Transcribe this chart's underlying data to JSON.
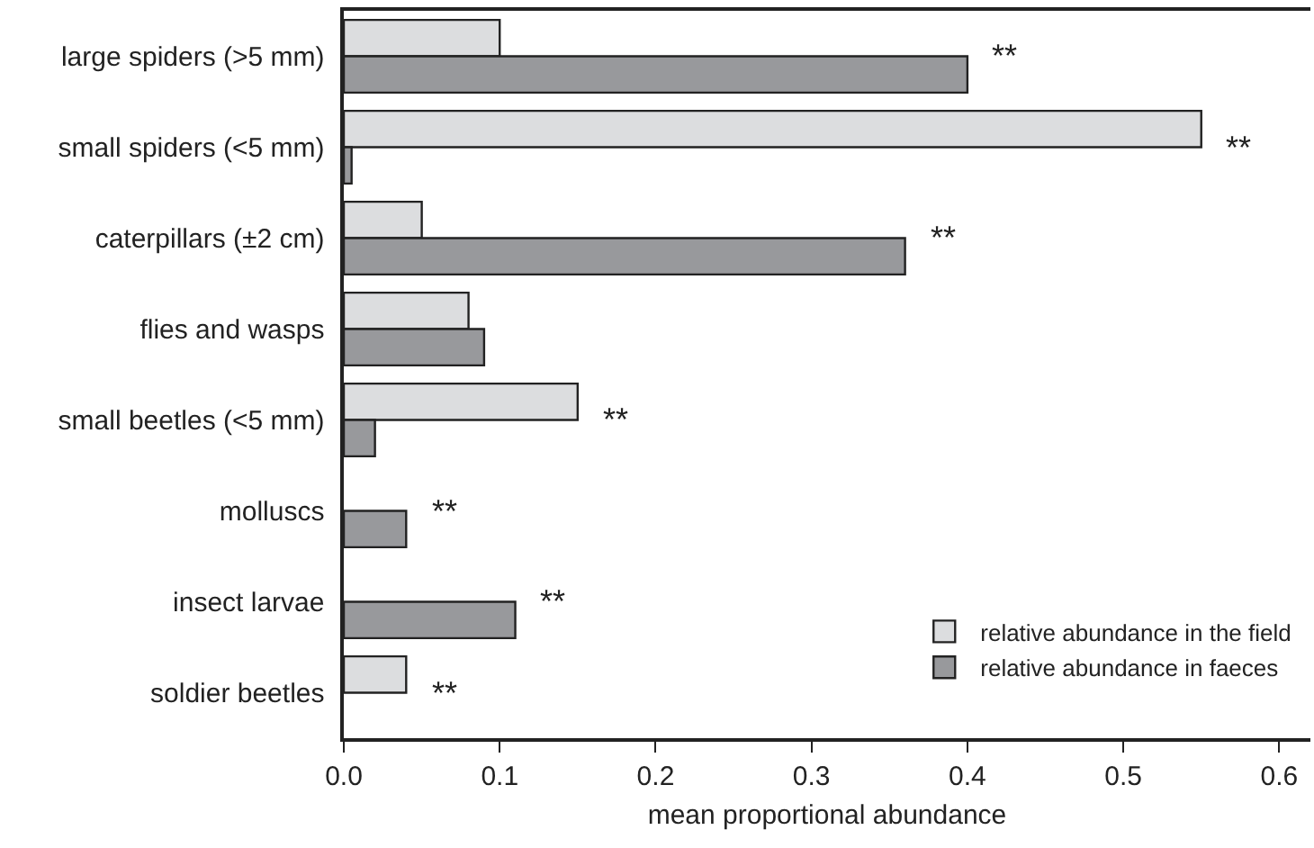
{
  "chart_data": {
    "type": "bar",
    "orientation": "horizontal",
    "xlabel": "mean proportional abundance",
    "categories": [
      "large spiders (>5 mm)",
      "small spiders (<5 mm)",
      "caterpillars (±2 cm)",
      "flies and wasps",
      "small beetles (<5 mm)",
      "molluscs",
      "insect larvae",
      "soldier beetles"
    ],
    "series": [
      {
        "name": "relative abundance in the field",
        "color": "#dcdddf",
        "values": [
          0.1,
          0.55,
          0.05,
          0.08,
          0.15,
          null,
          null,
          0.04
        ]
      },
      {
        "name": "relative abundance in faeces",
        "color": "#98999c",
        "values": [
          0.4,
          0.005,
          0.36,
          0.09,
          0.02,
          0.04,
          0.11,
          null
        ]
      }
    ],
    "xlim": [
      0,
      0.62
    ],
    "xticks": [
      {
        "value": 0,
        "label": "0.0"
      },
      0.1,
      0.2,
      0.3,
      0.4,
      0.5,
      0.6
    ],
    "annotations": [
      {
        "text": "**",
        "x": 0.4,
        "y": "large spiders (>5 mm)"
      },
      {
        "text": "**",
        "x": 0.55,
        "y": "small spiders (<5 mm)"
      },
      {
        "text": "**",
        "x": 0.36,
        "y": "caterpillars (±2 cm)"
      },
      {
        "text": "**",
        "x": 0.15,
        "y": "small beetles (<5 mm)"
      },
      {
        "text": "**",
        "x": 0.04,
        "y": "molluscs"
      },
      {
        "text": "**",
        "x": 0.11,
        "y": "insect larvae"
      },
      {
        "text": "**",
        "x": 0.04,
        "y": "soldier beetles"
      }
    ],
    "grid": false,
    "legend": "bottom right"
  }
}
